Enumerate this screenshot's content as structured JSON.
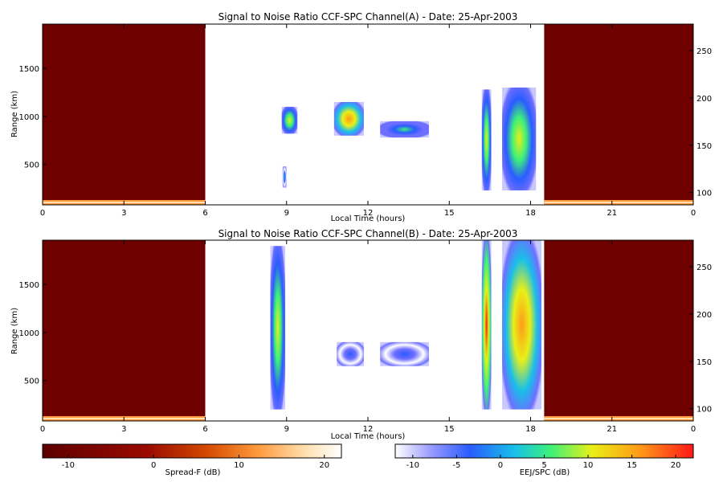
{
  "chart_data": [
    {
      "type": "heatmap",
      "title": "Signal to Noise Ratio CCF-SPC Channel(A) - Date: 25-Apr-2003",
      "xlabel": "Local Time (hours)",
      "ylabel": "Range (km)",
      "x_ticks_bottom": [
        "0",
        "3",
        "6",
        "9",
        "12",
        "15",
        "18",
        "21",
        "0"
      ],
      "xlim": [
        0,
        24
      ],
      "ylim": [
        80,
        1960
      ],
      "y_ticks_left": [
        500,
        1000,
        1500
      ],
      "y_ticks_right": [
        100,
        150,
        200,
        250
      ],
      "spread_f_intervals_hours": [
        [
          0,
          6
        ],
        [
          18.5,
          24
        ]
      ],
      "eej_spc_echo_blocks": [
        {
          "t": [
            8.82,
            9.4
          ],
          "range_km": [
            820,
            1100
          ],
          "peak_db": 13
        },
        {
          "t": [
            8.85,
            9.0
          ],
          "range_km": [
            260,
            480
          ],
          "peak_db": 2
        },
        {
          "t": [
            10.75,
            11.85
          ],
          "range_km": [
            800,
            1150
          ],
          "peak_db": 18
        },
        {
          "t": [
            12.45,
            14.25
          ],
          "range_km": [
            780,
            950
          ],
          "peak_db": 6
        },
        {
          "t": [
            16.2,
            16.55
          ],
          "range_km": [
            230,
            1280
          ],
          "peak_db": 14
        },
        {
          "t": [
            16.95,
            18.2
          ],
          "range_km": [
            230,
            1300
          ],
          "peak_db": 13
        }
      ]
    },
    {
      "type": "heatmap",
      "title": "Signal to Noise Ratio CCF-SPC Channel(B) - Date: 25-Apr-2003",
      "xlabel": "Local Time (hours)",
      "ylabel": "Range (km)",
      "x_ticks_bottom": [
        "0",
        "3",
        "6",
        "9",
        "12",
        "15",
        "18",
        "21",
        "0"
      ],
      "xlim": [
        0,
        24
      ],
      "ylim": [
        80,
        1960
      ],
      "y_ticks_left": [
        500,
        1000,
        1500
      ],
      "y_ticks_right": [
        100,
        150,
        200,
        250
      ],
      "spread_f_intervals_hours": [
        [
          0,
          6
        ],
        [
          18.5,
          24
        ]
      ],
      "eej_spc_echo_blocks": [
        {
          "t": [
            8.4,
            8.95
          ],
          "range_km": [
            200,
            1900
          ],
          "peak_db": 14
        },
        {
          "t": [
            10.85,
            11.85
          ],
          "range_km": [
            650,
            900
          ],
          "peak_db": 0
        },
        {
          "t": [
            12.45,
            14.25
          ],
          "range_km": [
            650,
            900
          ],
          "peak_db": 0
        },
        {
          "t": [
            16.2,
            16.55
          ],
          "range_km": [
            200,
            1960
          ],
          "peak_db": 20
        },
        {
          "t": [
            16.95,
            18.4
          ],
          "range_km": [
            200,
            1960
          ],
          "peak_db": 17
        }
      ]
    }
  ],
  "colorbars": {
    "spread_f": {
      "label": "Spread-F (dB)",
      "ticks": [
        "-10",
        "0",
        "10",
        "20"
      ],
      "range": [
        -13,
        22
      ]
    },
    "eej_spc": {
      "label": "EEJ/SPC (dB)",
      "ticks": [
        "-10",
        "-5",
        "0",
        "5",
        "10",
        "15",
        "20"
      ],
      "range": [
        -12,
        22
      ]
    }
  },
  "colors": {
    "spread_f_background": "#6e0000",
    "spread_f_scale": [
      "#5e0000",
      "#9a0a00",
      "#d44a00",
      "#ff9a3c",
      "#ffe0b0",
      "#ffffff"
    ],
    "eej_scale": [
      "#ffffff",
      "#6e6eff",
      "#2a5cff",
      "#18c0e8",
      "#3cf07a",
      "#e8f018",
      "#ff9a18",
      "#ff1818"
    ]
  }
}
